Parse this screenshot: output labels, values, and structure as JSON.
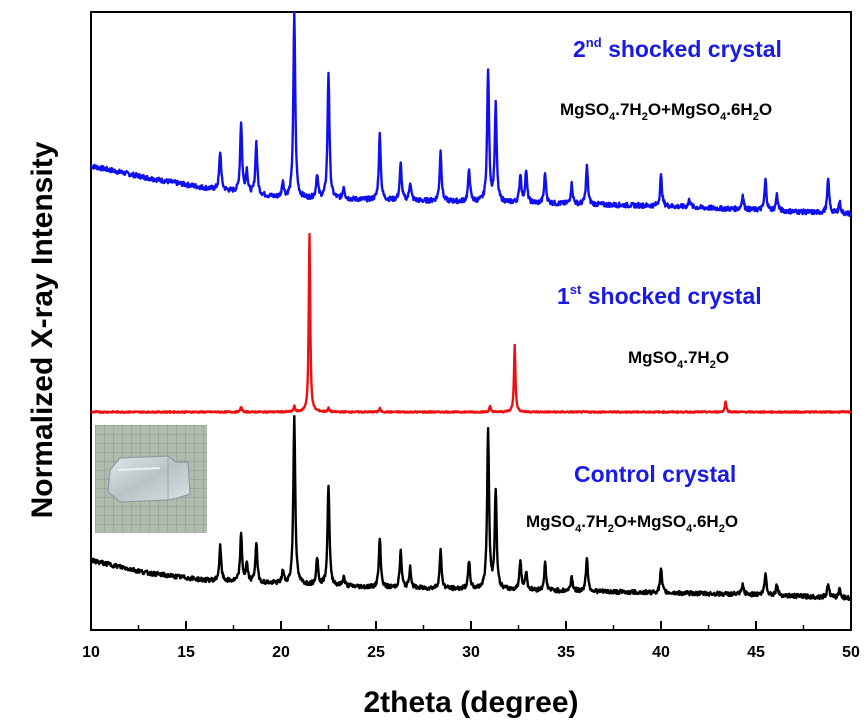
{
  "chart_data": {
    "type": "line",
    "xlabel": "2theta (degree)",
    "ylabel": "Normalized X-ray Intensity",
    "xlim": [
      10,
      50
    ],
    "xticks": [
      10,
      15,
      20,
      25,
      30,
      35,
      40,
      45,
      50
    ],
    "yticks_shown": false,
    "grid": false,
    "series": [
      {
        "name": "2nd shocked crystal",
        "name_base": "2",
        "name_sup": "nd",
        "name_rest": " shocked crystal",
        "composition": "MgSO4·7H2O+MgSO4·6H2O",
        "color": "#1010ee",
        "stack_level": "top",
        "baseline": [
          [
            10,
            0.26
          ],
          [
            13,
            0.2
          ],
          [
            16,
            0.15
          ],
          [
            20,
            0.1
          ],
          [
            25,
            0.09
          ],
          [
            30,
            0.08
          ],
          [
            35,
            0.07
          ],
          [
            40,
            0.06
          ],
          [
            45,
            0.04
          ],
          [
            50,
            0.02
          ]
        ],
        "peaks": [
          [
            16.8,
            0.19
          ],
          [
            17.9,
            0.35
          ],
          [
            18.2,
            0.11
          ],
          [
            18.7,
            0.26
          ],
          [
            20.1,
            0.08
          ],
          [
            20.7,
            0.92
          ],
          [
            21.9,
            0.12
          ],
          [
            22.5,
            0.63
          ],
          [
            23.3,
            0.06
          ],
          [
            25.2,
            0.33
          ],
          [
            26.3,
            0.18
          ],
          [
            26.8,
            0.09
          ],
          [
            28.4,
            0.25
          ],
          [
            29.9,
            0.16
          ],
          [
            30.9,
            0.66
          ],
          [
            31.3,
            0.48
          ],
          [
            32.6,
            0.14
          ],
          [
            32.9,
            0.16
          ],
          [
            33.9,
            0.15
          ],
          [
            35.3,
            0.1
          ],
          [
            36.1,
            0.19
          ],
          [
            40.0,
            0.15
          ],
          [
            41.5,
            0.04
          ],
          [
            44.3,
            0.07
          ],
          [
            45.5,
            0.15
          ],
          [
            46.1,
            0.08
          ],
          [
            48.8,
            0.17
          ],
          [
            49.4,
            0.06
          ]
        ]
      },
      {
        "name": "1st shocked crystal",
        "name_base": "1",
        "name_sup": "st",
        "name_rest": " shocked crystal",
        "composition": "MgSO4·7H2O",
        "color": "#ee1010",
        "stack_level": "middle",
        "baseline": [
          [
            10,
            0.0
          ],
          [
            50,
            0.0
          ]
        ],
        "peaks": [
          [
            17.9,
            0.03
          ],
          [
            20.7,
            0.03
          ],
          [
            21.5,
            1.0
          ],
          [
            22.5,
            0.02
          ],
          [
            25.2,
            0.02
          ],
          [
            31.0,
            0.03
          ],
          [
            32.3,
            0.38
          ],
          [
            43.4,
            0.06
          ]
        ]
      },
      {
        "name": "Control crystal",
        "composition": "MgSO4·7H2O+MgSO4·6H2O",
        "color": "#000000",
        "stack_level": "bottom",
        "baseline": [
          [
            10,
            0.22
          ],
          [
            13,
            0.15
          ],
          [
            16,
            0.11
          ],
          [
            20,
            0.09
          ],
          [
            25,
            0.07
          ],
          [
            30,
            0.06
          ],
          [
            35,
            0.05
          ],
          [
            40,
            0.04
          ],
          [
            45,
            0.03
          ],
          [
            50,
            0.01
          ]
        ],
        "peaks": [
          [
            16.8,
            0.19
          ],
          [
            17.9,
            0.26
          ],
          [
            18.2,
            0.1
          ],
          [
            18.7,
            0.22
          ],
          [
            20.1,
            0.07
          ],
          [
            20.7,
            0.93
          ],
          [
            21.9,
            0.15
          ],
          [
            22.5,
            0.56
          ],
          [
            23.3,
            0.05
          ],
          [
            25.2,
            0.27
          ],
          [
            26.3,
            0.2
          ],
          [
            26.8,
            0.11
          ],
          [
            28.4,
            0.21
          ],
          [
            29.9,
            0.15
          ],
          [
            30.9,
            0.89
          ],
          [
            31.3,
            0.55
          ],
          [
            32.6,
            0.16
          ],
          [
            32.9,
            0.1
          ],
          [
            33.9,
            0.15
          ],
          [
            35.3,
            0.08
          ],
          [
            36.1,
            0.19
          ],
          [
            40.0,
            0.13
          ],
          [
            44.3,
            0.05
          ],
          [
            45.5,
            0.12
          ],
          [
            46.1,
            0.06
          ],
          [
            48.8,
            0.08
          ],
          [
            49.4,
            0.05
          ]
        ]
      }
    ],
    "inset": "photo of crystal on grid paper",
    "inset_position": "upper-left of bottom trace"
  }
}
